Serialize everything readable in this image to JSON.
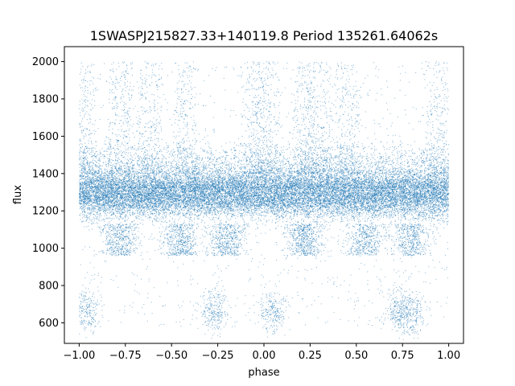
{
  "chart_data": {
    "type": "scatter",
    "title": "1SWASPJ215827.33+140119.8 Period 135261.64062s",
    "xlabel": "phase",
    "ylabel": "flux",
    "xlim": [
      -1.08,
      1.08
    ],
    "ylim": [
      490,
      2080
    ],
    "xticks": [
      -1.0,
      -0.75,
      -0.5,
      -0.25,
      0.0,
      0.25,
      0.5,
      0.75,
      1.0
    ],
    "xtick_labels": [
      "−1.00",
      "−0.75",
      "−0.50",
      "−0.25",
      "0.00",
      "0.25",
      "0.50",
      "0.75",
      "1.00"
    ],
    "yticks": [
      600,
      800,
      1000,
      1200,
      1400,
      1600,
      1800,
      2000
    ],
    "ytick_labels": [
      "600",
      "800",
      "1000",
      "1200",
      "1400",
      "1600",
      "1800",
      "2000"
    ],
    "grid": false,
    "legend": "none",
    "point_color": "#1f77b4",
    "series": [
      {
        "x_range": [
          -1.0,
          1.0
        ],
        "point_count": 30000,
        "core_band_flux": [
          1150,
          1450
        ],
        "core_center_flux": 1280,
        "lower_clump_flux": [
          960,
          1130
        ],
        "lower_clump_phases": [
          -0.78,
          -0.45,
          -0.2,
          0.22,
          0.55,
          0.8
        ],
        "upper_excursion_peak_flux": 2000,
        "upper_excursion_phases": [
          -0.98,
          -0.78,
          -0.62,
          -0.42,
          -0.05,
          0.02,
          0.22,
          0.3,
          0.45,
          0.95
        ],
        "low_outlier_clusters": [
          {
            "phase": -0.96,
            "flux": 660
          },
          {
            "phase": -0.27,
            "flux": 660
          },
          {
            "phase": 0.04,
            "flux": 660
          },
          {
            "phase": 0.73,
            "flux": 660
          },
          {
            "phase": 0.8,
            "flux": 650
          }
        ]
      }
    ]
  }
}
